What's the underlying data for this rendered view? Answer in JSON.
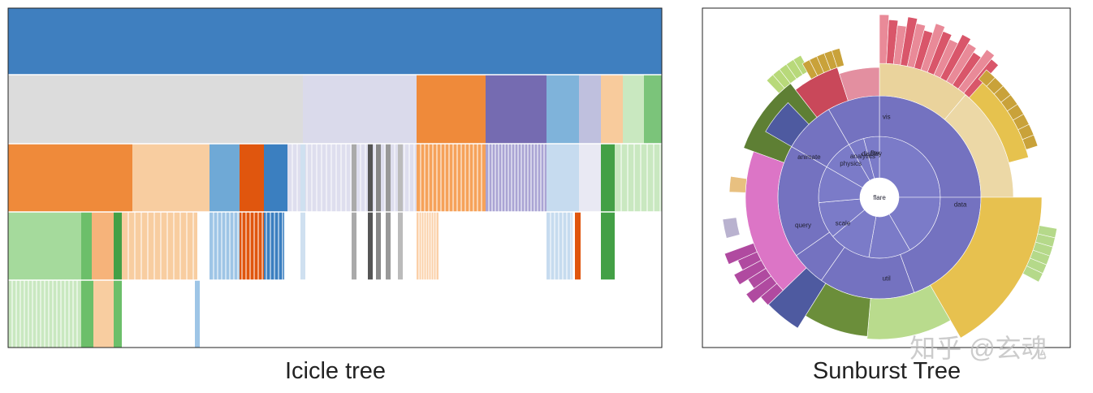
{
  "icicle": {
    "caption": "Icicle tree"
  },
  "sunburst": {
    "caption": "Sunburst Tree",
    "center": "flare",
    "ring_labels": [
      "vis",
      "data",
      "util",
      "query",
      "animate",
      "analytics",
      "display",
      "scale",
      "physics",
      "flex"
    ]
  },
  "watermark": "知乎 @玄魂"
}
